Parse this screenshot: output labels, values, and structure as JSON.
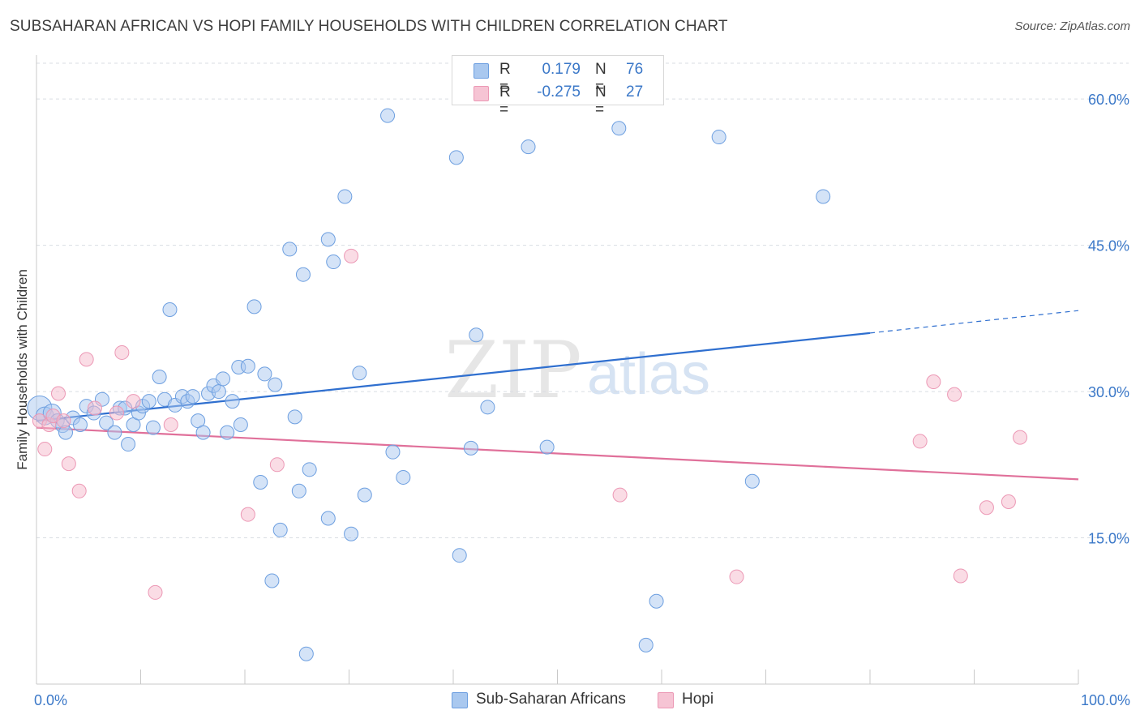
{
  "title": "SUBSAHARAN AFRICAN VS HOPI FAMILY HOUSEHOLDS WITH CHILDREN CORRELATION CHART",
  "source": "Source: ZipAtlas.com",
  "watermark": {
    "zip": "ZIP",
    "atlas": "atlas"
  },
  "legend": {
    "r_label": "R =",
    "n_label": "N =",
    "rows": [
      {
        "r": "0.179",
        "n": "76"
      },
      {
        "r": "-0.275",
        "n": "27"
      }
    ]
  },
  "colors": {
    "blue": "#3b78c8",
    "blue_fill": "#a9c8ef",
    "blue_line": "#2f6fcf",
    "pink": "#e66f98",
    "pink_fill": "#f6b9cc",
    "pink_line": "#e0709a",
    "grid": "#d9dde3",
    "axis_label": "#3b78c8"
  },
  "chart_data": {
    "type": "scatter",
    "title": "SUBSAHARAN AFRICAN VS HOPI FAMILY HOUSEHOLDS WITH CHILDREN CORRELATION CHART",
    "xlabel": "",
    "ylabel": "Family Households with Children",
    "xlim": [
      0,
      100
    ],
    "ylim": [
      0,
      64.5
    ],
    "x_tick_labels": [
      "0.0%",
      "100.0%"
    ],
    "y_ticks": [
      15,
      30,
      45,
      60
    ],
    "y_tick_labels": [
      "15.0%",
      "30.0%",
      "45.0%",
      "60.0%"
    ],
    "legend_position": "top-center",
    "series": [
      {
        "name": "Sub-Saharan Africans",
        "R": 0.179,
        "N": 76,
        "trend": {
          "x0": 0,
          "y0": 27.0,
          "x1": 80,
          "y1": 36.0,
          "dashed_to_x": 100,
          "dashed_to_y": 38.3
        },
        "points": [
          [
            0.3,
            28.3,
            3
          ],
          [
            0.8,
            27.5,
            2
          ],
          [
            1.5,
            27.8,
            2
          ],
          [
            2.0,
            27.0,
            1
          ],
          [
            2.5,
            26.5,
            1
          ],
          [
            2.8,
            25.8,
            1
          ],
          [
            3.5,
            27.3,
            1
          ],
          [
            4.2,
            26.6,
            1
          ],
          [
            4.8,
            28.5,
            1
          ],
          [
            5.5,
            27.8,
            1
          ],
          [
            6.3,
            29.2,
            1
          ],
          [
            6.7,
            26.8,
            1
          ],
          [
            7.5,
            25.8,
            1
          ],
          [
            8.0,
            28.3,
            1
          ],
          [
            8.5,
            28.3,
            1
          ],
          [
            8.8,
            24.6,
            1
          ],
          [
            9.3,
            26.6,
            1
          ],
          [
            9.8,
            27.8,
            1
          ],
          [
            10.2,
            28.5,
            1
          ],
          [
            10.8,
            29.0,
            1
          ],
          [
            11.2,
            26.3,
            1
          ],
          [
            11.8,
            31.5,
            1
          ],
          [
            12.3,
            29.2,
            1
          ],
          [
            12.8,
            38.4,
            1
          ],
          [
            13.3,
            28.6,
            1
          ],
          [
            14.0,
            29.5,
            1
          ],
          [
            14.5,
            29.0,
            1
          ],
          [
            15.0,
            29.5,
            1
          ],
          [
            15.5,
            27.0,
            1
          ],
          [
            16.0,
            25.8,
            1
          ],
          [
            16.5,
            29.8,
            1
          ],
          [
            17.0,
            30.6,
            1
          ],
          [
            17.5,
            30.0,
            1
          ],
          [
            17.9,
            31.3,
            1
          ],
          [
            18.3,
            25.8,
            1
          ],
          [
            18.8,
            29.0,
            1
          ],
          [
            19.4,
            32.5,
            1
          ],
          [
            19.6,
            26.6,
            1
          ],
          [
            20.3,
            32.6,
            1
          ],
          [
            20.9,
            38.7,
            1
          ],
          [
            21.5,
            20.7,
            1
          ],
          [
            21.9,
            31.8,
            1
          ],
          [
            22.6,
            10.6,
            1
          ],
          [
            22.9,
            30.7,
            1
          ],
          [
            23.4,
            15.8,
            1
          ],
          [
            24.3,
            44.6,
            1
          ],
          [
            24.8,
            27.4,
            1
          ],
          [
            25.2,
            19.8,
            1
          ],
          [
            25.6,
            42.0,
            1
          ],
          [
            25.9,
            3.1,
            1
          ],
          [
            26.2,
            22.0,
            1
          ],
          [
            28.0,
            17.0,
            1
          ],
          [
            28.0,
            45.6,
            1
          ],
          [
            28.5,
            43.3,
            1
          ],
          [
            29.6,
            50.0,
            1
          ],
          [
            30.2,
            15.4,
            1
          ],
          [
            31.0,
            31.9,
            1
          ],
          [
            31.5,
            19.4,
            1
          ],
          [
            33.7,
            58.3,
            1
          ],
          [
            34.2,
            23.8,
            1
          ],
          [
            35.2,
            21.2,
            1
          ],
          [
            40.3,
            54.0,
            1
          ],
          [
            40.6,
            13.2,
            1
          ],
          [
            41.7,
            24.2,
            1
          ],
          [
            42.2,
            35.8,
            1
          ],
          [
            43.3,
            28.4,
            1
          ],
          [
            47.2,
            55.1,
            1
          ],
          [
            49.0,
            24.3,
            1
          ],
          [
            55.9,
            57.0,
            1
          ],
          [
            58.5,
            4.0,
            1
          ],
          [
            59.5,
            8.5,
            1
          ],
          [
            65.5,
            56.1,
            1
          ],
          [
            68.7,
            20.8,
            1
          ],
          [
            75.5,
            50.0,
            1
          ]
        ]
      },
      {
        "name": "Hopi",
        "R": -0.275,
        "N": 27,
        "trend": {
          "x0": 0,
          "y0": 26.3,
          "x1": 100,
          "y1": 21.0
        },
        "points": [
          [
            0.3,
            27.0,
            1
          ],
          [
            0.8,
            24.1,
            1
          ],
          [
            1.2,
            26.6,
            1
          ],
          [
            1.6,
            27.5,
            1
          ],
          [
            2.1,
            29.8,
            1
          ],
          [
            2.6,
            27.0,
            1
          ],
          [
            3.1,
            22.6,
            1
          ],
          [
            4.1,
            19.8,
            1
          ],
          [
            4.8,
            33.3,
            1
          ],
          [
            5.6,
            28.3,
            1
          ],
          [
            7.7,
            27.8,
            1
          ],
          [
            8.2,
            34.0,
            1
          ],
          [
            9.3,
            29.0,
            1
          ],
          [
            11.4,
            9.4,
            1
          ],
          [
            12.9,
            26.6,
            1
          ],
          [
            20.3,
            17.4,
            1
          ],
          [
            23.1,
            22.5,
            1
          ],
          [
            30.2,
            43.9,
            1
          ],
          [
            56.0,
            19.4,
            1
          ],
          [
            67.2,
            11.0,
            1
          ],
          [
            84.8,
            24.9,
            1
          ],
          [
            86.1,
            31.0,
            1
          ],
          [
            88.1,
            29.7,
            1
          ],
          [
            88.7,
            11.1,
            1
          ],
          [
            91.2,
            18.1,
            1
          ],
          [
            93.3,
            18.7,
            1
          ],
          [
            94.4,
            25.3,
            1
          ]
        ]
      }
    ]
  }
}
